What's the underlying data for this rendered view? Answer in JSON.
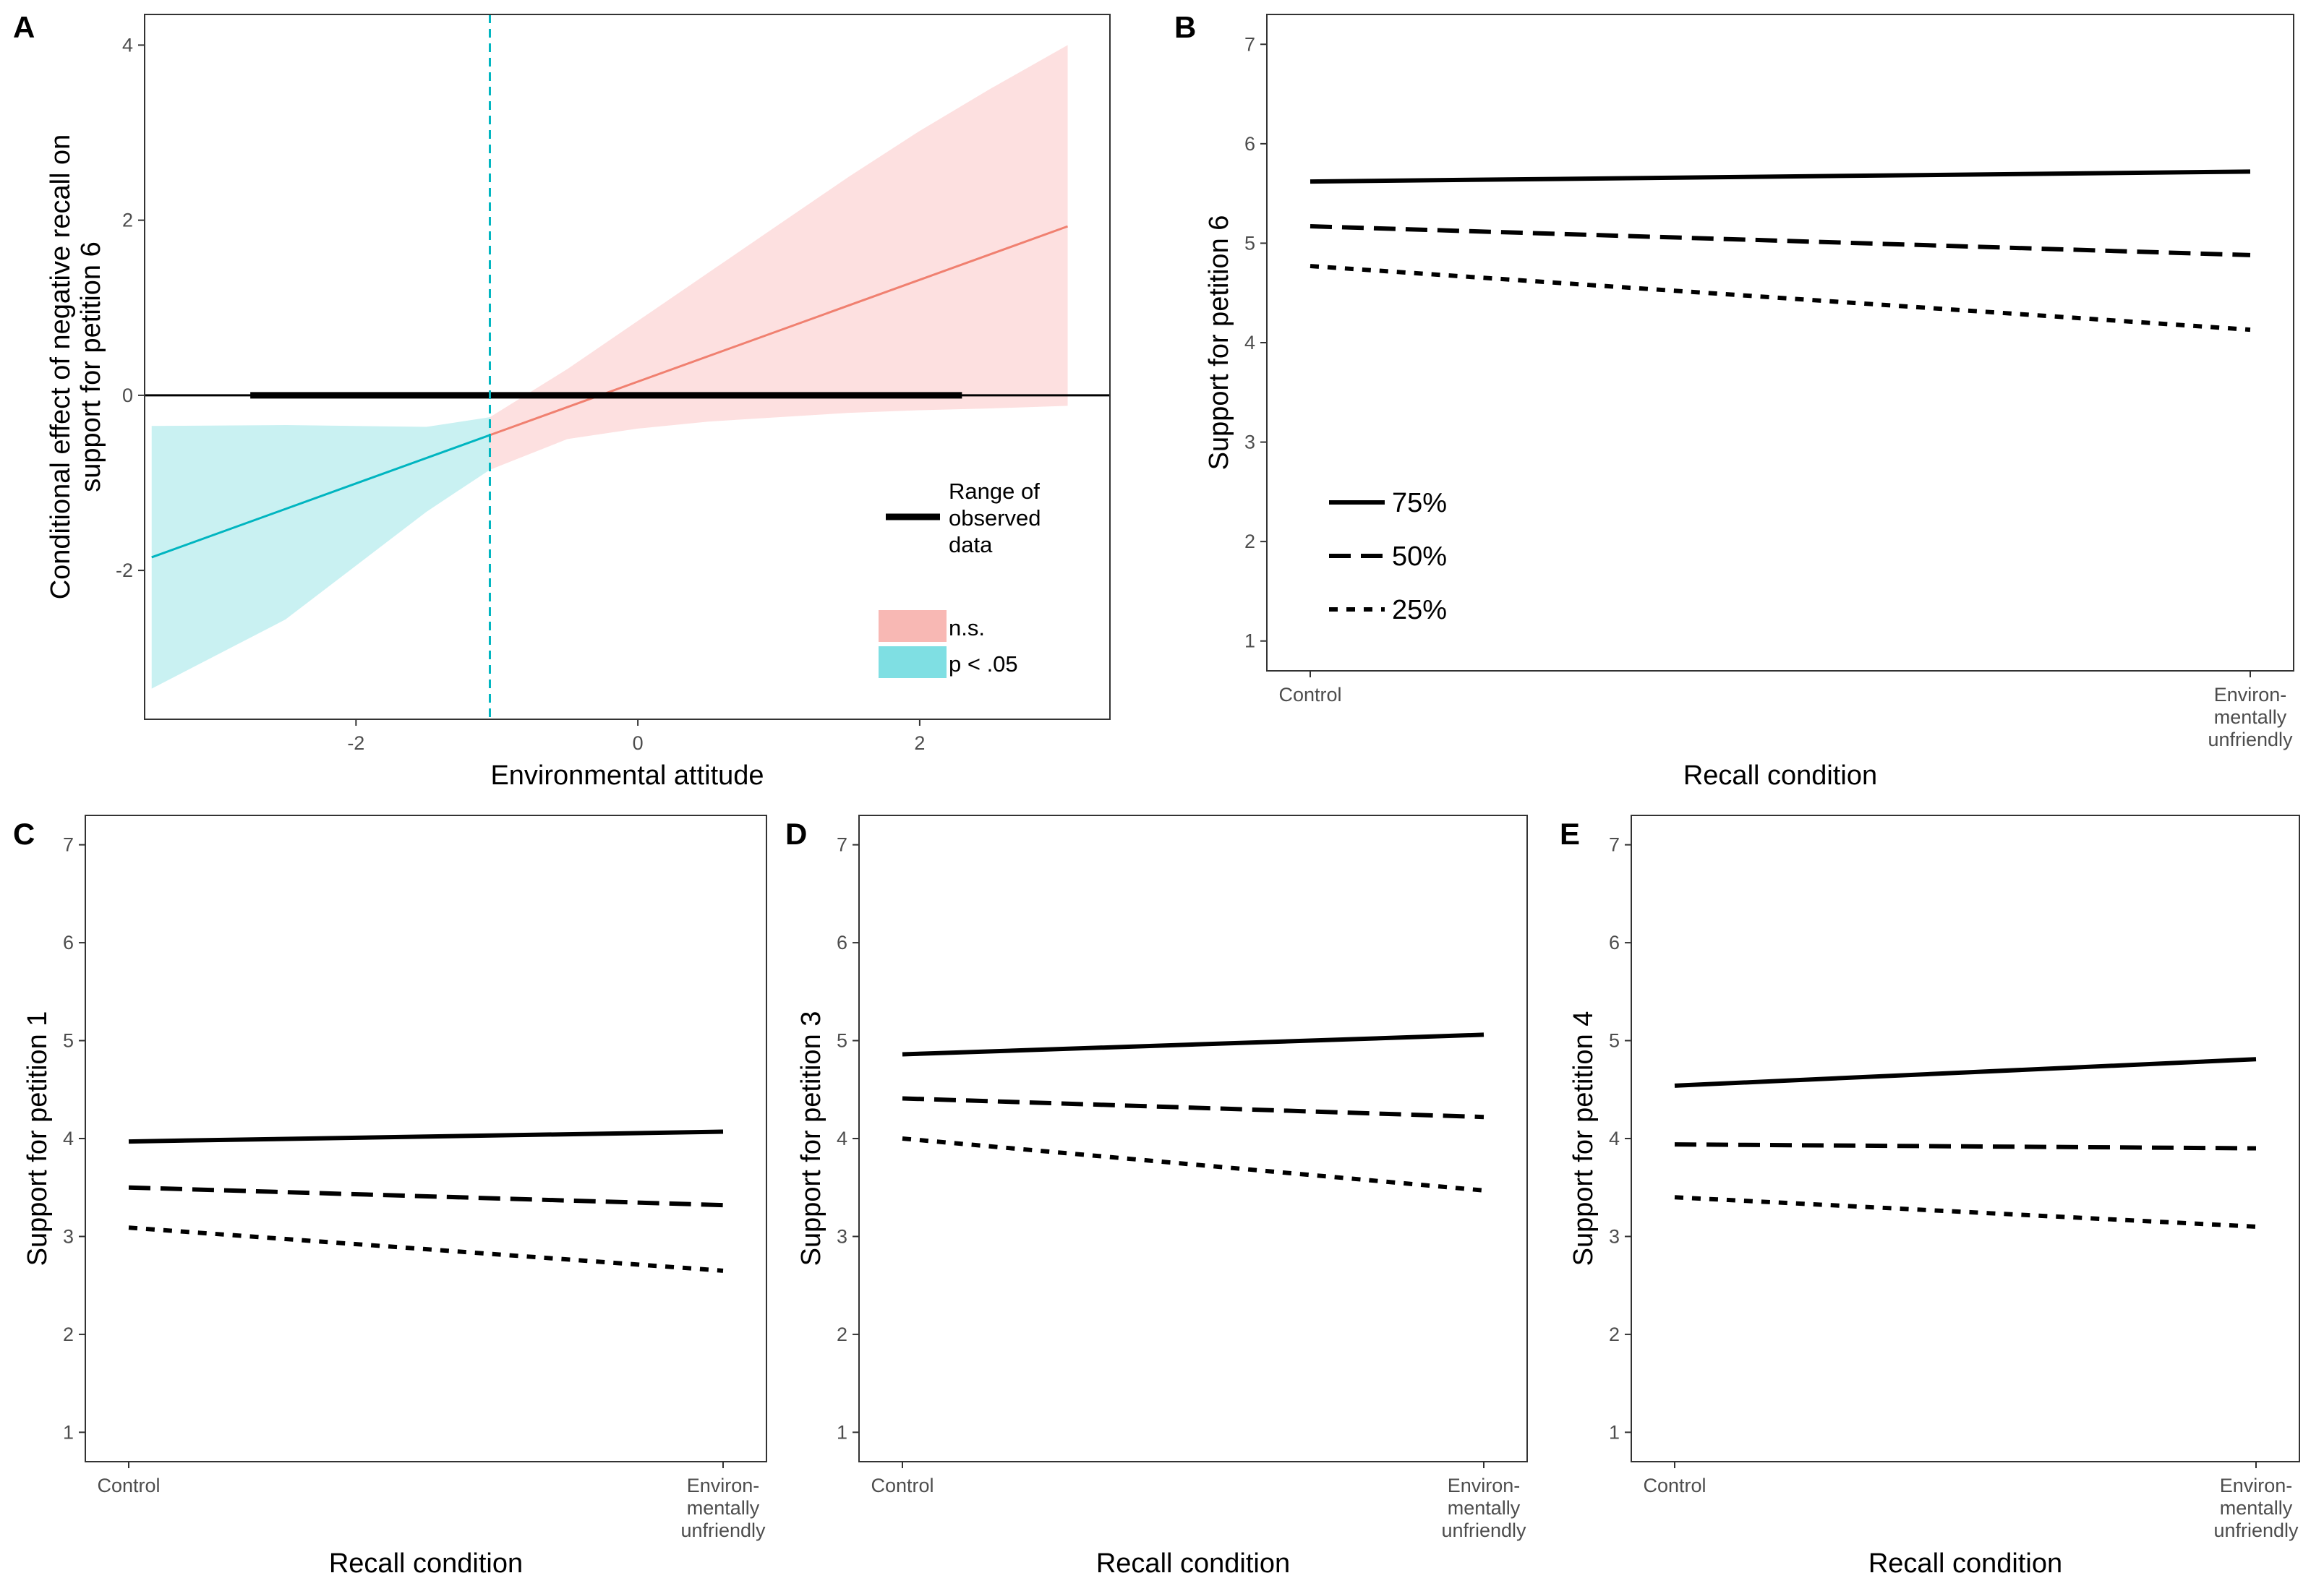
{
  "chart_data": [
    {
      "panel": "A",
      "type": "line",
      "xlabel": "Environmental attitude",
      "ylabel_lines": [
        "Conditional effect of negative recall on",
        "support for petition 6"
      ],
      "xlim": [
        -3.5,
        3.35
      ],
      "ylim": [
        -3.7,
        4.35
      ],
      "xticks": [
        -2,
        0,
        2
      ],
      "xtick_labels": [
        "-2",
        "0",
        "2"
      ],
      "yticks": [
        -2,
        0,
        2,
        4
      ],
      "ytick_labels": [
        "-2",
        "0",
        "2",
        "4"
      ],
      "cutoff_x": -1.05,
      "observed_range": [
        -2.75,
        2.3
      ],
      "effect_line": {
        "x": [
          -3.45,
          3.05
        ],
        "y": [
          -1.85,
          1.93
        ]
      },
      "band": {
        "x": [
          -3.45,
          -2.5,
          -1.5,
          -1.05,
          -0.5,
          0.0,
          0.5,
          1.0,
          1.5,
          2.0,
          2.5,
          3.05
        ],
        "upper": [
          -0.35,
          -0.34,
          -0.36,
          -0.25,
          0.3,
          0.85,
          1.4,
          1.95,
          2.5,
          3.02,
          3.5,
          4.0
        ],
        "lower": [
          -3.35,
          -2.56,
          -1.33,
          -0.85,
          -0.5,
          -0.38,
          -0.3,
          -0.25,
          -0.2,
          -0.17,
          -0.15,
          -0.12
        ]
      },
      "legend": {
        "range_label_lines": [
          "Range of",
          "observed",
          "data"
        ],
        "ns_label": "n.s.",
        "sig_label": "p < .05"
      },
      "colors": {
        "ns_fill": "#fde0e0",
        "sig_fill": "#c9f1f2",
        "ns_line": "#f08070",
        "sig_line": "#00b5c0",
        "ns_key": "#f8b8b4",
        "sig_key": "#7fdfe3"
      }
    },
    {
      "panel": "B",
      "type": "line",
      "xlabel": "Recall condition",
      "ylabel": "Support for petition 6",
      "categories": [
        "Control",
        "Environ-mentally unfriendly"
      ],
      "category_label_lines": [
        [
          "Control"
        ],
        [
          "Environ-",
          "mentally",
          "unfriendly"
        ]
      ],
      "ylim": [
        0.7,
        7.3
      ],
      "yticks": [
        1,
        2,
        3,
        4,
        5,
        6,
        7
      ],
      "ytick_labels": [
        "1",
        "2",
        "3",
        "4",
        "5",
        "6",
        "7"
      ],
      "series": [
        {
          "name": "75%",
          "values": [
            5.62,
            5.72
          ]
        },
        {
          "name": "50%",
          "values": [
            5.17,
            4.88
          ]
        },
        {
          "name": "25%",
          "values": [
            4.77,
            4.13
          ]
        }
      ]
    },
    {
      "panel": "C",
      "type": "line",
      "xlabel": "Recall condition",
      "ylabel": "Support for petition 1",
      "categories": [
        "Control",
        "Environ-mentally unfriendly"
      ],
      "category_label_lines": [
        [
          "Control"
        ],
        [
          "Environ-",
          "mentally",
          "unfriendly"
        ]
      ],
      "ylim": [
        0.7,
        7.3
      ],
      "yticks": [
        1,
        2,
        3,
        4,
        5,
        6,
        7
      ],
      "ytick_labels": [
        "1",
        "2",
        "3",
        "4",
        "5",
        "6",
        "7"
      ],
      "series": [
        {
          "name": "75%",
          "values": [
            3.97,
            4.07
          ]
        },
        {
          "name": "50%",
          "values": [
            3.5,
            3.32
          ]
        },
        {
          "name": "25%",
          "values": [
            3.09,
            2.65
          ]
        }
      ]
    },
    {
      "panel": "D",
      "type": "line",
      "xlabel": "Recall condition",
      "ylabel": "Support for petition 3",
      "categories": [
        "Control",
        "Environ-mentally unfriendly"
      ],
      "category_label_lines": [
        [
          "Control"
        ],
        [
          "Environ-",
          "mentally",
          "unfriendly"
        ]
      ],
      "ylim": [
        0.7,
        7.3
      ],
      "yticks": [
        1,
        2,
        3,
        4,
        5,
        6,
        7
      ],
      "ytick_labels": [
        "1",
        "2",
        "3",
        "4",
        "5",
        "6",
        "7"
      ],
      "series": [
        {
          "name": "75%",
          "values": [
            4.86,
            5.06
          ]
        },
        {
          "name": "50%",
          "values": [
            4.41,
            4.22
          ]
        },
        {
          "name": "25%",
          "values": [
            4.0,
            3.47
          ]
        }
      ]
    },
    {
      "panel": "E",
      "type": "line",
      "xlabel": "Recall condition",
      "ylabel": "Support for petition 4",
      "categories": [
        "Control",
        "Environ-mentally unfriendly"
      ],
      "category_label_lines": [
        [
          "Control"
        ],
        [
          "Environ-",
          "mentally",
          "unfriendly"
        ]
      ],
      "ylim": [
        0.7,
        7.3
      ],
      "yticks": [
        1,
        2,
        3,
        4,
        5,
        6,
        7
      ],
      "ytick_labels": [
        "1",
        "2",
        "3",
        "4",
        "5",
        "6",
        "7"
      ],
      "series": [
        {
          "name": "75%",
          "values": [
            4.54,
            4.81
          ]
        },
        {
          "name": "50%",
          "values": [
            3.94,
            3.9
          ]
        },
        {
          "name": "25%",
          "values": [
            3.4,
            3.1
          ]
        }
      ]
    }
  ]
}
